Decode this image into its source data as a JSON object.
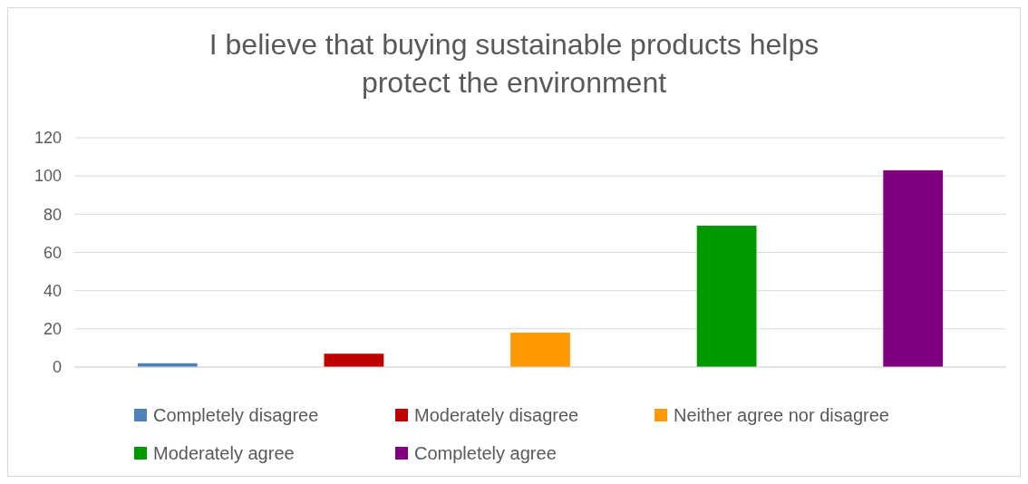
{
  "chart_data": {
    "type": "bar",
    "title": "I believe that buying sustainable products helps protect the environment",
    "categories": [
      null,
      null,
      null,
      null,
      null
    ],
    "series": [
      {
        "name": "Completely disagree",
        "color": "#4f81bd",
        "values": [
          2,
          null,
          null,
          null,
          null
        ]
      },
      {
        "name": "Moderately disagree",
        "color": "#c00000",
        "values": [
          null,
          7,
          null,
          null,
          null
        ]
      },
      {
        "name": "Neither agree nor disagree",
        "color": "#ff9900",
        "values": [
          null,
          null,
          18,
          null,
          null
        ]
      },
      {
        "name": "Moderately agree",
        "color": "#009900",
        "values": [
          null,
          null,
          null,
          74,
          null
        ]
      },
      {
        "name": "Completely agree",
        "color": "#800080",
        "values": [
          null,
          null,
          null,
          null,
          103
        ]
      }
    ],
    "ylim": [
      0,
      120
    ],
    "yticks": [
      0,
      20,
      40,
      60,
      80,
      100,
      120
    ],
    "grid": "y",
    "legend": "bottom"
  }
}
